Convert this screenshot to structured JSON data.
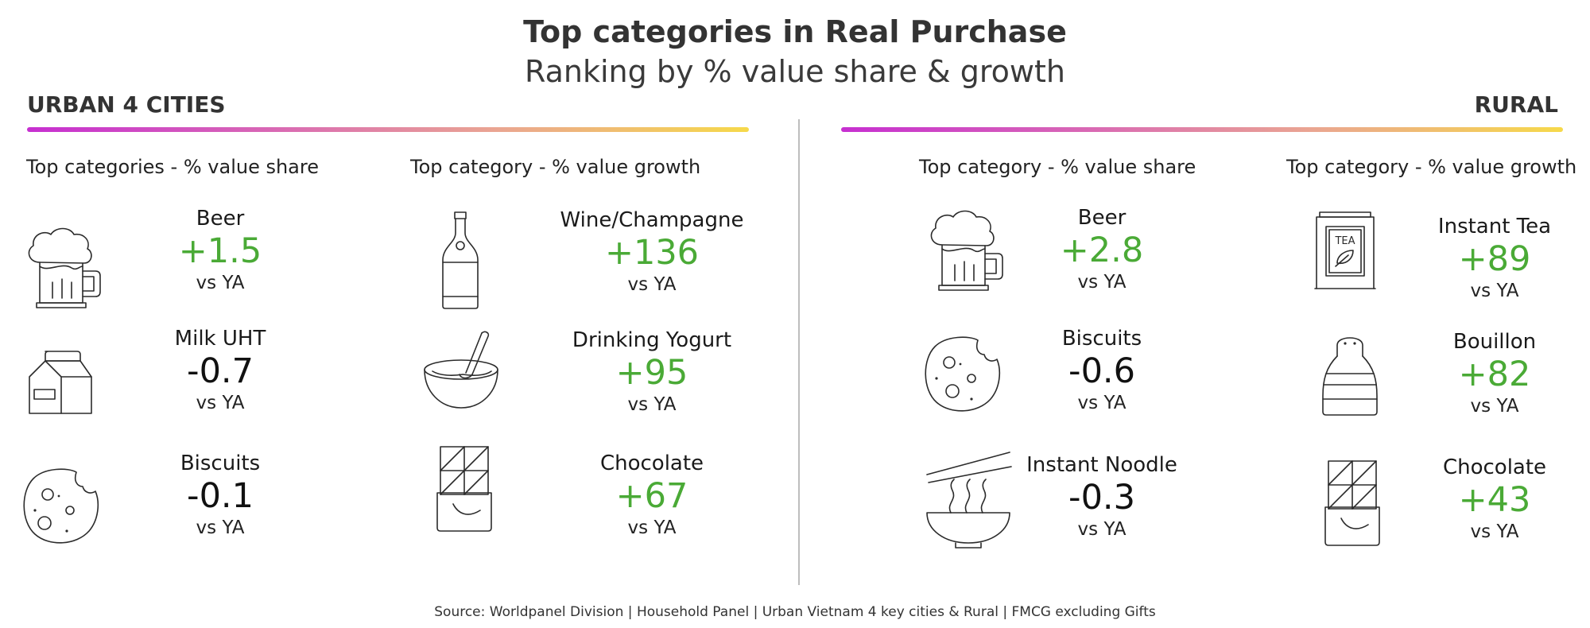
{
  "header": {
    "title": "Top categories in Real Purchase",
    "subtitle": "Ranking by % value share & growth"
  },
  "regions": {
    "urban": {
      "label": "URBAN 4 CITIES"
    },
    "rural": {
      "label": "RURAL"
    }
  },
  "columns": {
    "urban_share": "Top categories - % value share",
    "urban_growth": "Top category - % value growth",
    "rural_share": "Top category - % value share",
    "rural_growth": "Top category - % value growth"
  },
  "vs_label": "vs YA",
  "accent_colors": {
    "positive": "#4aaa36",
    "neutral": "#111111",
    "gradient_start": "#c62fd0",
    "gradient_end": "#f6d94a"
  },
  "urban_share": [
    {
      "name": "Beer",
      "value": "+1.5",
      "icon": "beer-mug-icon"
    },
    {
      "name": "Milk UHT",
      "value": "-0.7",
      "icon": "milk-carton-icon"
    },
    {
      "name": "Biscuits",
      "value": "-0.1",
      "icon": "cookie-icon"
    }
  ],
  "urban_growth": [
    {
      "name": "Wine/Champagne",
      "value": "+136",
      "icon": "wine-bottle-icon"
    },
    {
      "name": "Drinking Yogurt",
      "value": "+95",
      "icon": "yogurt-bowl-icon"
    },
    {
      "name": "Chocolate",
      "value": "+67",
      "icon": "chocolate-bar-icon"
    }
  ],
  "rural_share": [
    {
      "name": "Beer",
      "value": "+2.8",
      "icon": "beer-mug-icon"
    },
    {
      "name": "Biscuits",
      "value": "-0.6",
      "icon": "cookie-icon"
    },
    {
      "name": "Instant Noodle",
      "value": "-0.3",
      "icon": "noodle-bowl-icon"
    }
  ],
  "rural_growth": [
    {
      "name": "Instant Tea",
      "value": "+89",
      "icon": "tea-tin-icon",
      "icon_text": "TEA"
    },
    {
      "name": "Bouillon",
      "value": "+82",
      "icon": "bouillon-shaker-icon"
    },
    {
      "name": "Chocolate",
      "value": "+43",
      "icon": "chocolate-bar-icon"
    }
  ],
  "source": "Source: Worldpanel Division | Household Panel | Urban Vietnam 4 key cities & Rural | FMCG excluding Gifts"
}
